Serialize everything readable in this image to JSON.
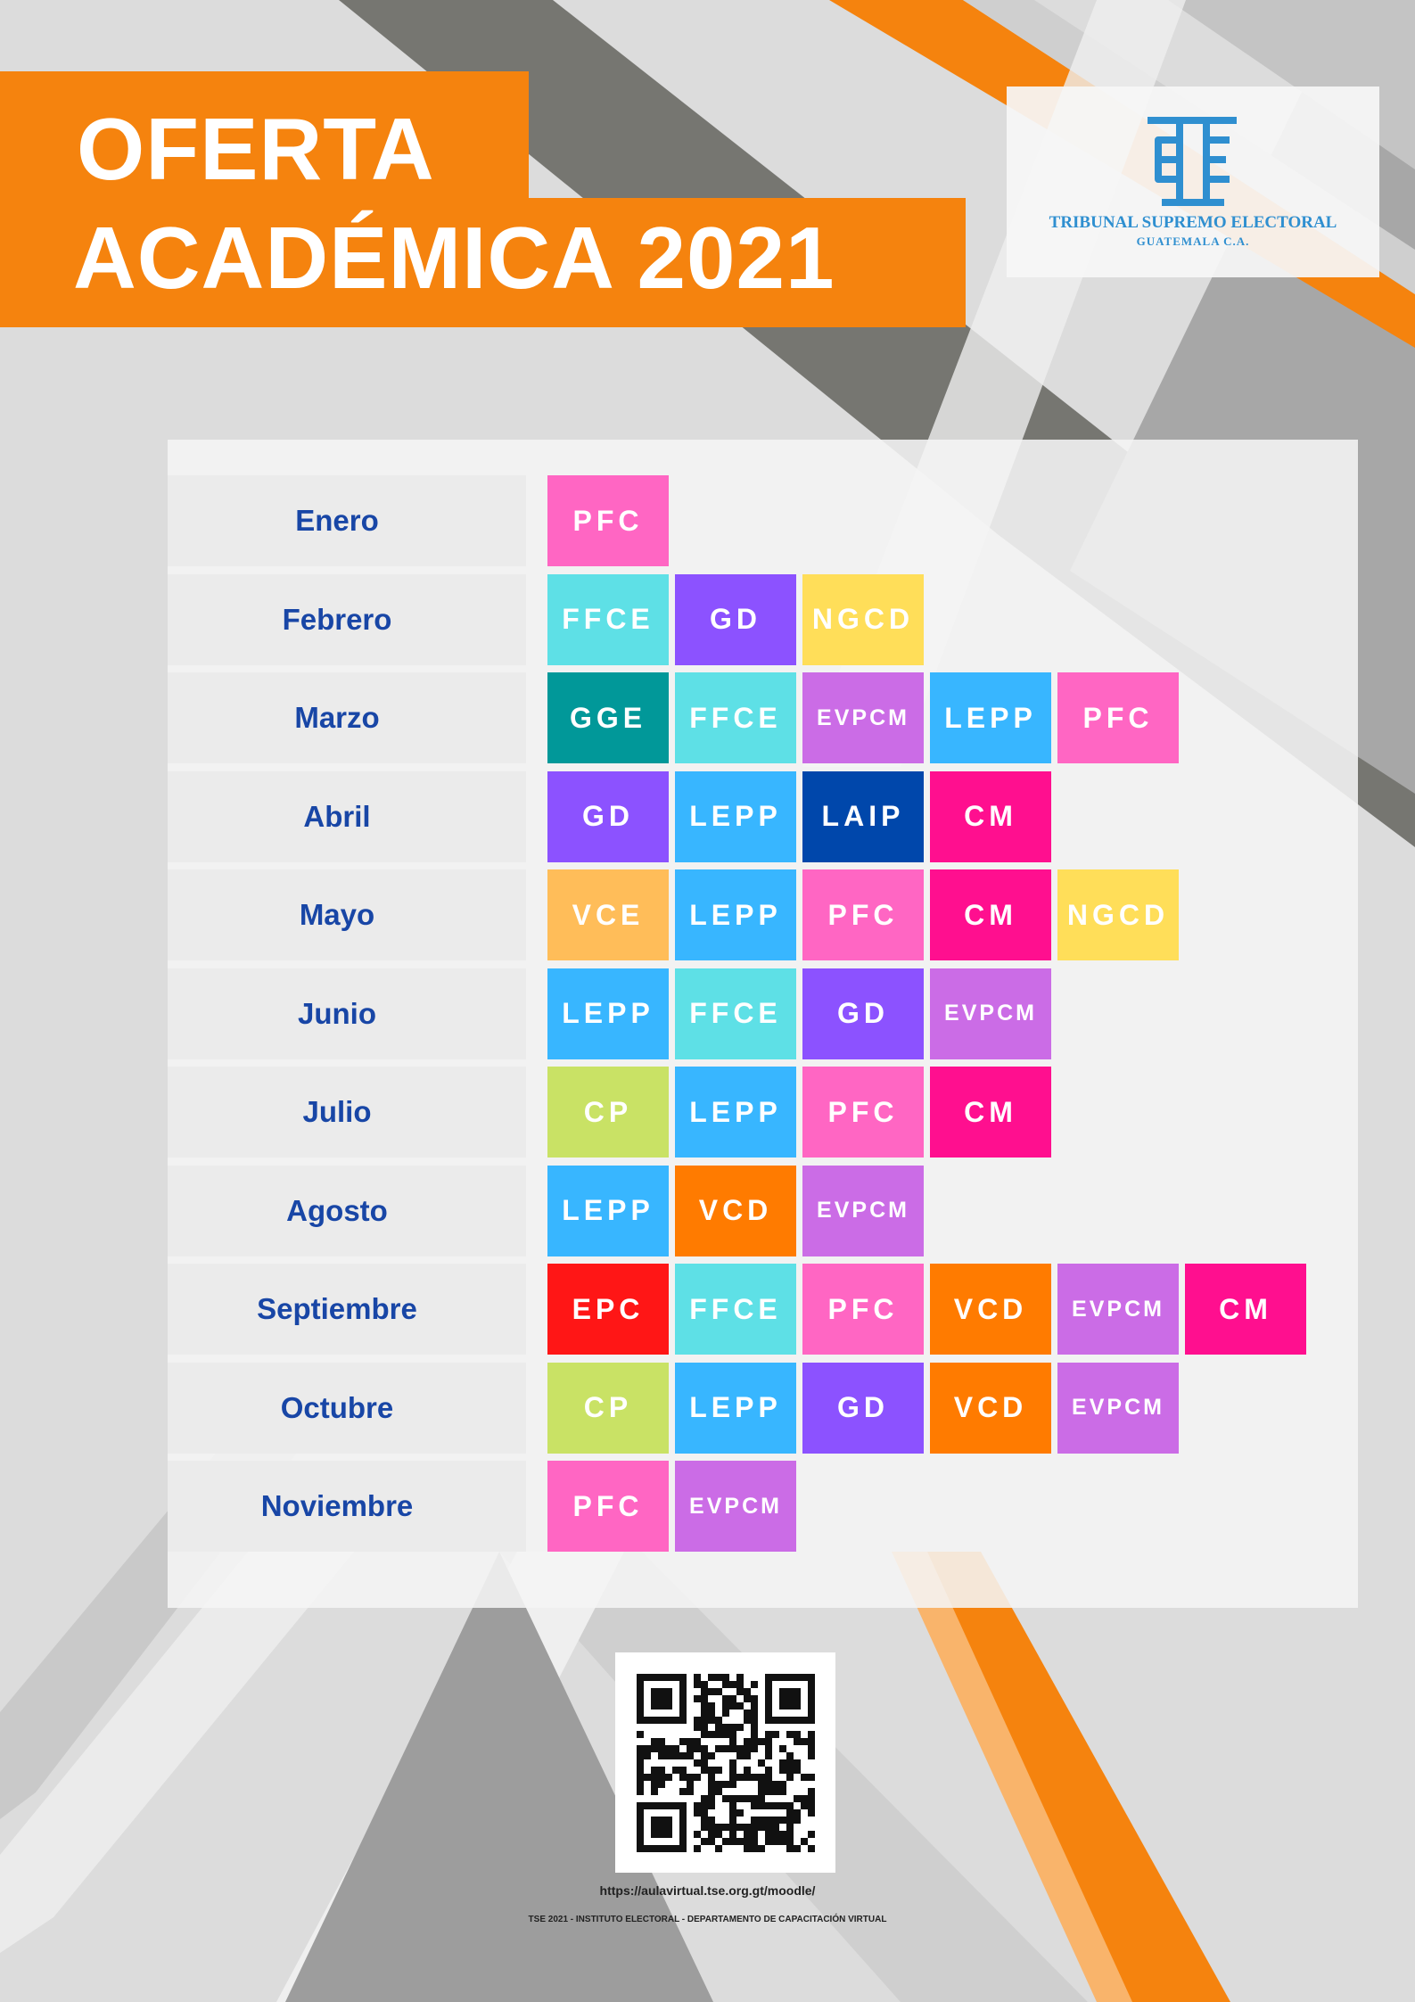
{
  "header": {
    "title_line1": "OFERTA",
    "title_line2": "ACADÉMICA 2021"
  },
  "logo": {
    "icon": "tse-emblem-icon",
    "name": "TRIBUNAL SUPREMO ELECTORAL",
    "country": "GUATEMALA C.A."
  },
  "colors": {
    "orange": "#f5830e",
    "dark_gray": "#767671",
    "month_text": "#1846a6",
    "PFC": "#ff66c3",
    "FFCE": "#5ee0e6",
    "GD": "#8c52ff",
    "NGCD": "#ffde59",
    "GGE": "#019899",
    "EVPCM": "#cb6ce6",
    "LEPP": "#38b6ff",
    "LAIP": "#0047ab",
    "CM": "#ff0f8f",
    "VCE": "#ffbd59",
    "CP": "#c9e265",
    "VCD": "#ff7b00",
    "EPC": "#ff1616"
  },
  "schedule": [
    {
      "month": "Enero",
      "courses": [
        "PFC"
      ]
    },
    {
      "month": "Febrero",
      "courses": [
        "FFCE",
        "GD",
        "NGCD"
      ]
    },
    {
      "month": "Marzo",
      "courses": [
        "GGE",
        "FFCE",
        "EVPCM",
        "LEPP",
        "PFC"
      ]
    },
    {
      "month": "Abril",
      "courses": [
        "GD",
        "LEPP",
        "LAIP",
        "CM"
      ]
    },
    {
      "month": "Mayo",
      "courses": [
        "VCE",
        "LEPP",
        "PFC",
        "CM",
        "NGCD"
      ]
    },
    {
      "month": "Junio",
      "courses": [
        "LEPP",
        "FFCE",
        "GD",
        "EVPCM"
      ]
    },
    {
      "month": "Julio",
      "courses": [
        "CP",
        "LEPP",
        "PFC",
        "CM"
      ]
    },
    {
      "month": "Agosto",
      "courses": [
        "LEPP",
        "VCD",
        "EVPCM"
      ]
    },
    {
      "month": "Septiembre",
      "courses": [
        "EPC",
        "FFCE",
        "PFC",
        "VCD",
        "EVPCM",
        "CM"
      ]
    },
    {
      "month": "Octubre",
      "courses": [
        "CP",
        "LEPP",
        "GD",
        "VCD",
        "EVPCM"
      ]
    },
    {
      "month": "Noviembre",
      "courses": [
        "PFC",
        "EVPCM"
      ]
    }
  ],
  "qr": {
    "icon": "qr-code-icon"
  },
  "footer": {
    "url": "https://aulavirtual.tse.org.gt/moodle/",
    "credits": "TSE 2021 - INSTITUTO ELECTORAL - DEPARTAMENTO DE CAPACITACIÓN VIRTUAL"
  }
}
